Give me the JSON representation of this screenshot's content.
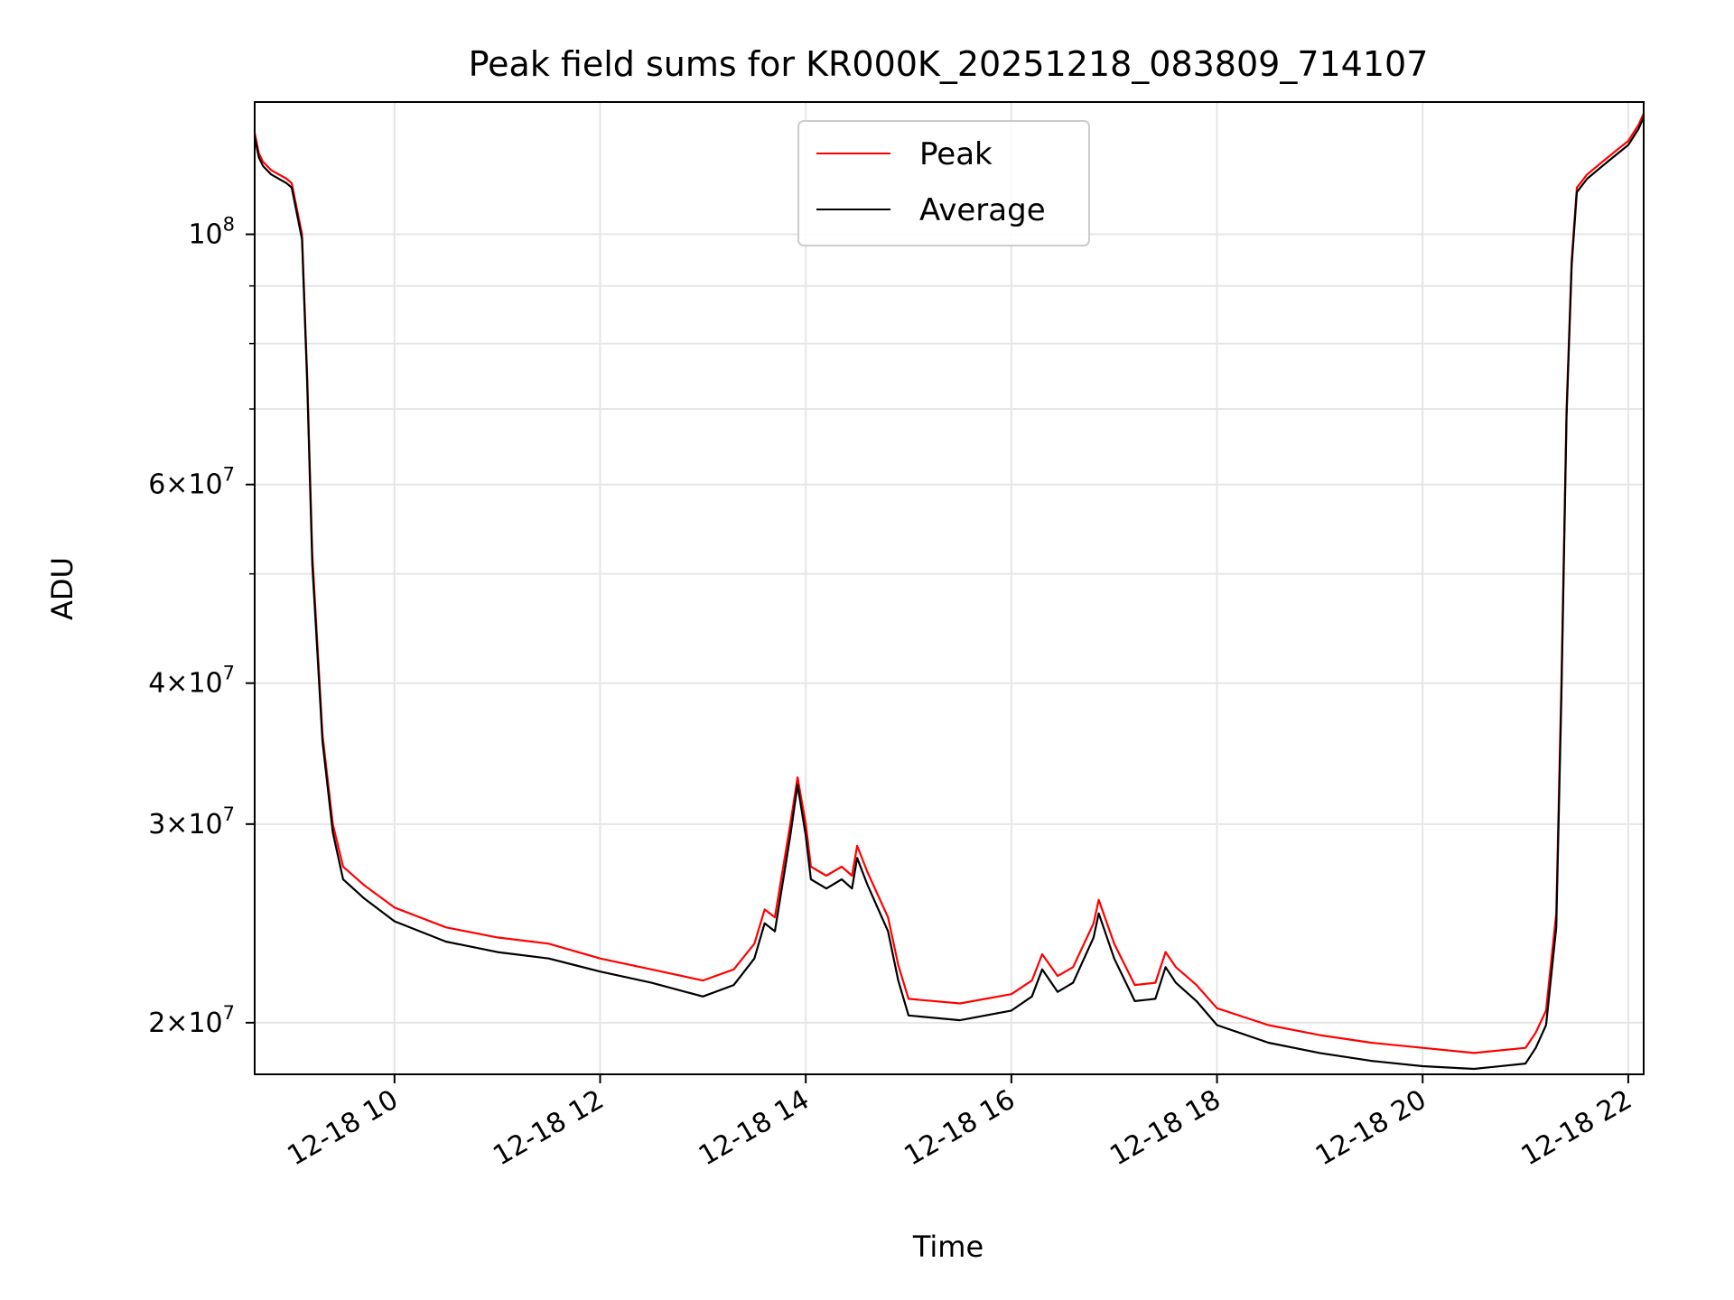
{
  "chart_data": {
    "type": "line",
    "title": "Peak field sums for KR000K_20251218_083809_714107",
    "xlabel": "Time",
    "ylabel": "ADU",
    "yscale": "log",
    "xlim": [
      8.64,
      22.15
    ],
    "ylim": [
      18000000,
      131000000
    ],
    "grid": true,
    "legend_position": "top-center",
    "x_ticks": [
      {
        "value": 10,
        "label": "12-18 10"
      },
      {
        "value": 12,
        "label": "12-18 12"
      },
      {
        "value": 14,
        "label": "12-18 14"
      },
      {
        "value": 16,
        "label": "12-18 16"
      },
      {
        "value": 18,
        "label": "12-18 18"
      },
      {
        "value": 20,
        "label": "12-18 20"
      },
      {
        "value": 22,
        "label": "12-18 22"
      }
    ],
    "y_major_ticks": [
      {
        "value": 20000000,
        "mantissa": "2",
        "exp": "7"
      },
      {
        "value": 30000000,
        "mantissa": "3",
        "exp": "7"
      },
      {
        "value": 40000000,
        "mantissa": "4",
        "exp": "7"
      },
      {
        "value": 60000000,
        "mantissa": "6",
        "exp": "7"
      },
      {
        "value": 100000000,
        "mantissa": "",
        "exp": "8"
      }
    ],
    "y_minor_ticks": [
      50000000,
      70000000,
      80000000,
      90000000
    ],
    "x_unit": "hour of day (2025-12-18)",
    "series": [
      {
        "name": "Peak",
        "color": "#ff0000",
        "points": [
          [
            8.64,
            123000000
          ],
          [
            8.68,
            118000000
          ],
          [
            8.72,
            116000000
          ],
          [
            8.8,
            114000000
          ],
          [
            8.95,
            112000000
          ],
          [
            9.0,
            111000000
          ],
          [
            9.1,
            100000000
          ],
          [
            9.15,
            75000000
          ],
          [
            9.2,
            52000000
          ],
          [
            9.3,
            36000000
          ],
          [
            9.4,
            30000000
          ],
          [
            9.5,
            27500000
          ],
          [
            9.7,
            26500000
          ],
          [
            10.0,
            25300000
          ],
          [
            10.5,
            24300000
          ],
          [
            11.0,
            23800000
          ],
          [
            11.5,
            23500000
          ],
          [
            12.0,
            22800000
          ],
          [
            12.5,
            22300000
          ],
          [
            13.0,
            21800000
          ],
          [
            13.3,
            22300000
          ],
          [
            13.5,
            23500000
          ],
          [
            13.6,
            25200000
          ],
          [
            13.7,
            24800000
          ],
          [
            13.85,
            30000000
          ],
          [
            13.92,
            33000000
          ],
          [
            14.0,
            30000000
          ],
          [
            14.05,
            27500000
          ],
          [
            14.2,
            27000000
          ],
          [
            14.35,
            27500000
          ],
          [
            14.45,
            27000000
          ],
          [
            14.5,
            28700000
          ],
          [
            14.6,
            27200000
          ],
          [
            14.8,
            24800000
          ],
          [
            14.9,
            22500000
          ],
          [
            15.0,
            21000000
          ],
          [
            15.5,
            20800000
          ],
          [
            16.0,
            21200000
          ],
          [
            16.2,
            21800000
          ],
          [
            16.3,
            23000000
          ],
          [
            16.45,
            22000000
          ],
          [
            16.6,
            22400000
          ],
          [
            16.8,
            24500000
          ],
          [
            16.85,
            25700000
          ],
          [
            17.0,
            23500000
          ],
          [
            17.2,
            21600000
          ],
          [
            17.4,
            21700000
          ],
          [
            17.5,
            23100000
          ],
          [
            17.6,
            22400000
          ],
          [
            17.8,
            21600000
          ],
          [
            18.0,
            20600000
          ],
          [
            18.5,
            19900000
          ],
          [
            19.0,
            19500000
          ],
          [
            19.5,
            19200000
          ],
          [
            20.0,
            19000000
          ],
          [
            20.5,
            18800000
          ],
          [
            21.0,
            19000000
          ],
          [
            21.1,
            19600000
          ],
          [
            21.2,
            20500000
          ],
          [
            21.3,
            25000000
          ],
          [
            21.35,
            40000000
          ],
          [
            21.4,
            70000000
          ],
          [
            21.45,
            95000000
          ],
          [
            21.5,
            110000000
          ],
          [
            21.6,
            113000000
          ],
          [
            21.8,
            117000000
          ],
          [
            22.0,
            121000000
          ],
          [
            22.1,
            125000000
          ],
          [
            22.15,
            128000000
          ]
        ]
      },
      {
        "name": "Average",
        "color": "#000000",
        "points": [
          [
            8.64,
            122000000
          ],
          [
            8.68,
            117000000
          ],
          [
            8.72,
            115000000
          ],
          [
            8.8,
            113000000
          ],
          [
            8.95,
            111000000
          ],
          [
            9.0,
            110000000
          ],
          [
            9.1,
            99000000
          ],
          [
            9.15,
            74000000
          ],
          [
            9.2,
            51000000
          ],
          [
            9.3,
            35500000
          ],
          [
            9.4,
            29500000
          ],
          [
            9.5,
            26800000
          ],
          [
            9.7,
            25800000
          ],
          [
            10.0,
            24600000
          ],
          [
            10.5,
            23600000
          ],
          [
            11.0,
            23100000
          ],
          [
            11.5,
            22800000
          ],
          [
            12.0,
            22200000
          ],
          [
            12.5,
            21700000
          ],
          [
            13.0,
            21100000
          ],
          [
            13.3,
            21600000
          ],
          [
            13.5,
            22800000
          ],
          [
            13.6,
            24500000
          ],
          [
            13.7,
            24100000
          ],
          [
            13.85,
            29300000
          ],
          [
            13.92,
            32500000
          ],
          [
            14.0,
            29300000
          ],
          [
            14.05,
            26800000
          ],
          [
            14.2,
            26300000
          ],
          [
            14.35,
            26800000
          ],
          [
            14.45,
            26300000
          ],
          [
            14.5,
            28000000
          ],
          [
            14.6,
            26500000
          ],
          [
            14.8,
            24100000
          ],
          [
            14.9,
            21800000
          ],
          [
            15.0,
            20300000
          ],
          [
            15.5,
            20100000
          ],
          [
            16.0,
            20500000
          ],
          [
            16.2,
            21100000
          ],
          [
            16.3,
            22300000
          ],
          [
            16.45,
            21300000
          ],
          [
            16.6,
            21700000
          ],
          [
            16.8,
            23800000
          ],
          [
            16.85,
            25000000
          ],
          [
            17.0,
            22800000
          ],
          [
            17.2,
            20900000
          ],
          [
            17.4,
            21000000
          ],
          [
            17.5,
            22400000
          ],
          [
            17.6,
            21700000
          ],
          [
            17.8,
            20900000
          ],
          [
            18.0,
            19900000
          ],
          [
            18.5,
            19200000
          ],
          [
            19.0,
            18800000
          ],
          [
            19.5,
            18500000
          ],
          [
            20.0,
            18300000
          ],
          [
            20.5,
            18200000
          ],
          [
            21.0,
            18400000
          ],
          [
            21.1,
            19000000
          ],
          [
            21.2,
            19900000
          ],
          [
            21.3,
            24300000
          ],
          [
            21.35,
            39000000
          ],
          [
            21.4,
            69000000
          ],
          [
            21.45,
            94000000
          ],
          [
            21.5,
            109000000
          ],
          [
            21.6,
            112000000
          ],
          [
            21.8,
            116000000
          ],
          [
            22.0,
            120000000
          ],
          [
            22.1,
            124000000
          ],
          [
            22.15,
            127000000
          ]
        ]
      }
    ]
  }
}
